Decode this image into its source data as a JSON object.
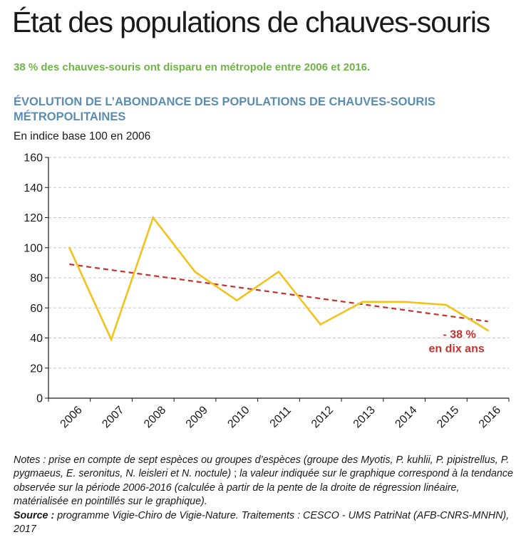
{
  "title": "État des populations de chauves-souris",
  "subtitle": "38 % des chauves-souris ont disparu en métropole entre 2006 et 2016.",
  "chart_heading": "ÉVOLUTION DE L’ABONDANCE DES POPULATIONS DE CHAUVES-SOURIS MÉTROPOLITAINES",
  "unit_label": "En indice base 100 en 2006",
  "notes": {
    "notes_label": "Notes :",
    "notes_text_1": "prise en compte de sept espèces ou groupes d’espèces (groupe des Myotis, P. kuhlii, P. pipistrellus, P. pygmaeus, E. seronitus, N. leisleri et N. noctule)",
    "notes_sep": " ; ",
    "notes_text_2": "la valeur indiquée sur le graphique correspond à la tendance observée sur la période 2006-2016 (calculée à partir de la pente de la droite de régression linéaire, matérialisée en pointillés sur le graphique).",
    "source_label": "Source :",
    "source_text": "programme Vigie-Chiro de Vigie-Nature. Traitements : CESCO - UMS PatriNat (AFB-CNRS-MNHN), 2017"
  },
  "colors": {
    "series": "#f3c21b",
    "trend": "#c8312c",
    "subtitle": "#6fb545",
    "heading": "#5b8db1",
    "grid": "#c8c8c8"
  },
  "chart_data": {
    "type": "line",
    "x": [
      "2006",
      "2007",
      "2008",
      "2009",
      "2010",
      "2011",
      "2012",
      "2013",
      "2014",
      "2015",
      "2016"
    ],
    "ylim": [
      0,
      160
    ],
    "yticks": [
      "0",
      "20",
      "40",
      "60",
      "80",
      "100",
      "120",
      "140",
      "160"
    ],
    "grid": "horizontal dashed",
    "series": [
      {
        "values": [
          100,
          39,
          120,
          84,
          65,
          84,
          49,
          64,
          64,
          62,
          45
        ]
      }
    ],
    "trend": {
      "style": "dashed",
      "start": 89,
      "end": 51
    },
    "annotation": {
      "line1": "- 38 %",
      "line2": "en dix ans"
    }
  }
}
